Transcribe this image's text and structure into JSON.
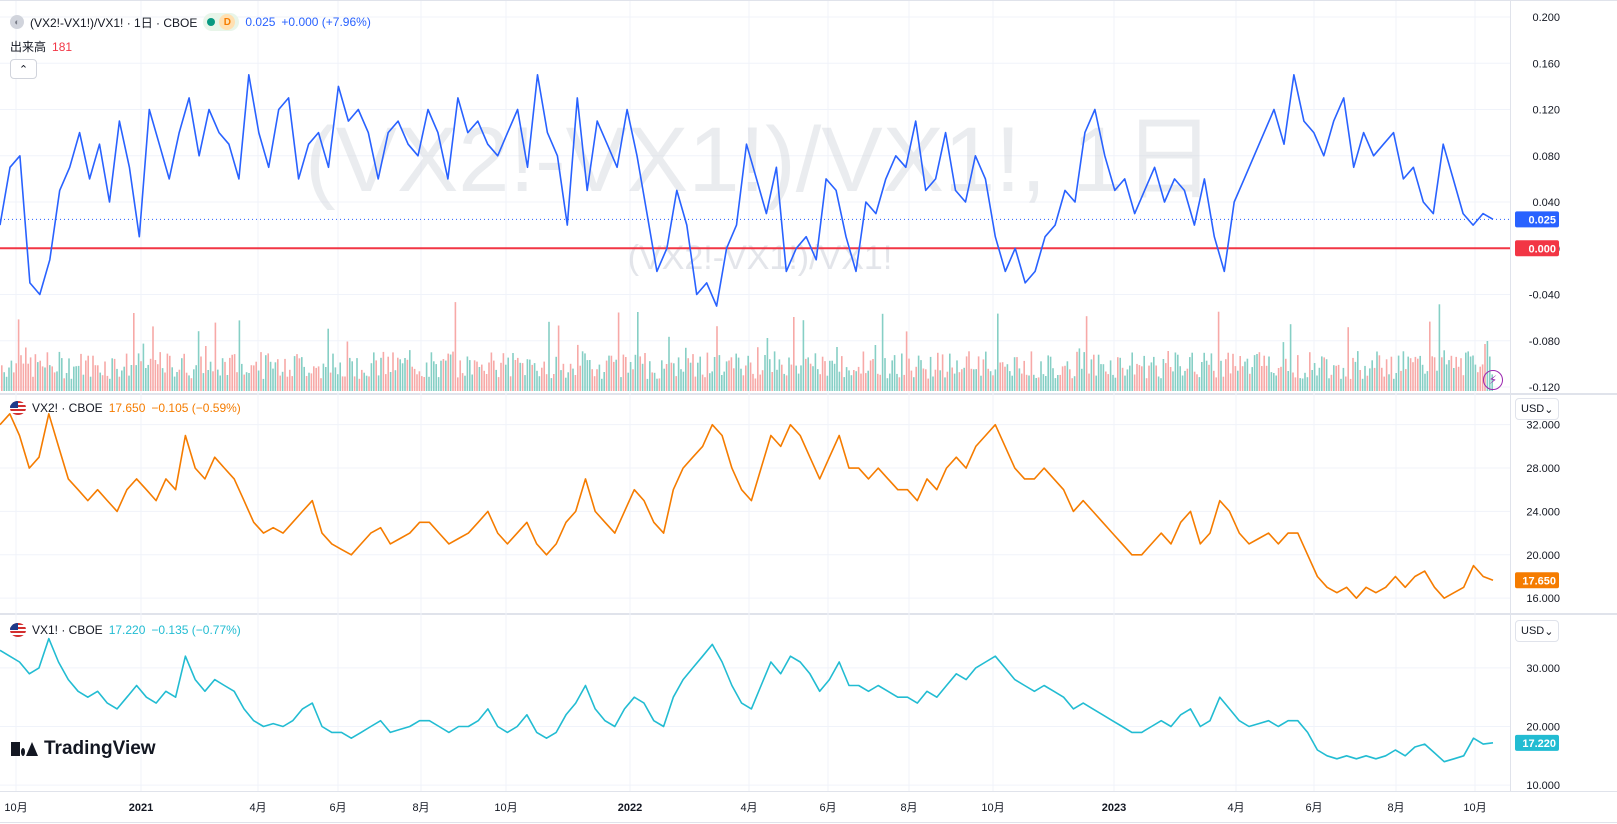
{
  "main_legend": {
    "symbol": "(VX2!-VX1!)/VX1! · 1日 · CBOE",
    "badge": "D",
    "value": "0.025",
    "change": "+0.000 (+7.96%)",
    "volume_label": "出来高",
    "volume_value": "181",
    "collapse_icon": "chevron-up-icon"
  },
  "watermark": {
    "big": "(VX2!-VX1!)/VX1!, 1日",
    "small": "(VX2!-VX1!)/VX1!"
  },
  "price_labels": {
    "spread_current": "0.025",
    "spread_zero": "0.000",
    "vx2_current": "17.650",
    "vx1_current": "17.220"
  },
  "vx2_legend": {
    "symbol": "VX2! · CBOE",
    "value": "17.650",
    "change": "−0.105 (−0.59%)",
    "currency": "USD"
  },
  "vx1_legend": {
    "symbol": "VX1! · CBOE",
    "value": "17.220",
    "change": "−0.135 (−0.77%)",
    "currency": "USD"
  },
  "branding": {
    "name": "TradingView"
  },
  "colors": {
    "spread": "#2962ff",
    "zero_line": "#f23645",
    "vx2": "#f57c00",
    "vx1": "#22bcd2",
    "vol_up": "#86cfc5",
    "vol_down": "#f7a9a7",
    "grid": "#f0f3fa",
    "axis_text": "#131722"
  },
  "chart_data": [
    {
      "type": "line",
      "title": "(VX2!-VX1!)/VX1! · 1日 · CBOE",
      "y_ticks": [
        "0.200",
        "0.160",
        "0.120",
        "0.080",
        "0.040",
        "0.000",
        "-0.040",
        "-0.080",
        "-0.120"
      ],
      "ylim": [
        -0.12,
        0.2
      ],
      "zero_line": 0.0,
      "last_value": 0.025,
      "x_ticks": [
        "10月",
        "2021",
        "4月",
        "6月",
        "8月",
        "10月",
        "2022",
        "4月",
        "6月",
        "8月",
        "10月",
        "2023",
        "4月",
        "6月",
        "8月",
        "10月"
      ],
      "series": [
        {
          "name": "(VX2!-VX1!)/VX1!",
          "keypoints": [
            0.02,
            0.07,
            0.08,
            -0.03,
            -0.04,
            -0.01,
            0.05,
            0.07,
            0.1,
            0.06,
            0.09,
            0.04,
            0.11,
            0.07,
            0.01,
            0.12,
            0.09,
            0.06,
            0.1,
            0.13,
            0.08,
            0.12,
            0.1,
            0.09,
            0.06,
            0.15,
            0.1,
            0.07,
            0.12,
            0.13,
            0.06,
            0.09,
            0.1,
            0.07,
            0.14,
            0.11,
            0.12,
            0.1,
            0.06,
            0.1,
            0.11,
            0.09,
            0.08,
            0.12,
            0.1,
            0.06,
            0.13,
            0.1,
            0.11,
            0.09,
            0.08,
            0.1,
            0.12,
            0.07,
            0.15,
            0.1,
            0.08,
            0.02,
            0.13,
            0.05,
            0.11,
            0.09,
            0.07,
            0.12,
            0.08,
            0.03,
            -0.02,
            0.0,
            0.05,
            0.02,
            -0.04,
            -0.03,
            -0.05,
            0.0,
            0.02,
            0.09,
            0.06,
            0.03,
            0.07,
            -0.02,
            0.0,
            0.01,
            -0.01,
            0.06,
            0.05,
            0.01,
            -0.02,
            0.04,
            0.03,
            0.06,
            0.08,
            0.07,
            0.11,
            0.05,
            0.06,
            0.1,
            0.05,
            0.04,
            0.08,
            0.06,
            0.01,
            -0.02,
            0.0,
            -0.03,
            -0.02,
            0.01,
            0.02,
            0.05,
            0.04,
            0.1,
            0.12,
            0.08,
            0.05,
            0.06,
            0.03,
            0.05,
            0.07,
            0.04,
            0.06,
            0.05,
            0.02,
            0.06,
            0.01,
            -0.02,
            0.04,
            0.06,
            0.08,
            0.1,
            0.12,
            0.09,
            0.15,
            0.11,
            0.1,
            0.08,
            0.11,
            0.13,
            0.07,
            0.1,
            0.08,
            0.09,
            0.1,
            0.06,
            0.07,
            0.04,
            0.03,
            0.09,
            0.06,
            0.03,
            0.02,
            0.03,
            0.025
          ]
        }
      ],
      "volume": {
        "label": "出来高",
        "last": 181
      }
    },
    {
      "type": "line",
      "title": "VX2! · CBOE",
      "y_ticks": [
        "32.000",
        "28.000",
        "24.000",
        "20.000",
        "16.000"
      ],
      "ylim": [
        15,
        34
      ],
      "last_value": 17.65,
      "series": [
        {
          "name": "VX2!",
          "keypoints": [
            32,
            33,
            31,
            28,
            29,
            33,
            30,
            27,
            26,
            25,
            26,
            25,
            24,
            26,
            27,
            26,
            25,
            27,
            26,
            31,
            28,
            27,
            29,
            28,
            27,
            25,
            23,
            22,
            22.5,
            22,
            23,
            24,
            25,
            22,
            21,
            20.5,
            20,
            21,
            22,
            22.5,
            21,
            21.5,
            22,
            23,
            23,
            22,
            21,
            21.5,
            22,
            23,
            24,
            22,
            21,
            22,
            23,
            21,
            20,
            21,
            23,
            24,
            27,
            24,
            23,
            22,
            24,
            26,
            25,
            23,
            22,
            26,
            28,
            29,
            30,
            32,
            31,
            28,
            26,
            25,
            28,
            31,
            30,
            32,
            31,
            29,
            27,
            29,
            31,
            28,
            28,
            27,
            28,
            27,
            26,
            26,
            25,
            27,
            26,
            28,
            29,
            28,
            30,
            31,
            32,
            30,
            28,
            27,
            27,
            28,
            27,
            26,
            24,
            25,
            24,
            23,
            22,
            21,
            20,
            20,
            21,
            22,
            21,
            23,
            24,
            21,
            22,
            25,
            24,
            22,
            21,
            21.5,
            22,
            21,
            22,
            22,
            20,
            18,
            17,
            16.5,
            17,
            16,
            17,
            16.5,
            17,
            18,
            17,
            18,
            18.5,
            17,
            16,
            16.5,
            17,
            19,
            18,
            17.65
          ]
        }
      ]
    },
    {
      "type": "line",
      "title": "VX1! · CBOE",
      "y_ticks": [
        "30.000",
        "20.000",
        "10.000"
      ],
      "ylim": [
        9,
        38
      ],
      "last_value": 17.22,
      "series": [
        {
          "name": "VX1!",
          "keypoints": [
            33,
            32,
            31,
            29,
            30,
            35,
            31,
            28,
            26,
            25,
            26,
            24,
            23,
            25,
            27,
            25,
            24,
            26,
            25,
            32,
            28,
            26,
            28,
            27,
            26,
            23,
            21,
            20,
            20.5,
            20,
            21,
            23,
            24,
            20,
            19,
            19,
            18,
            19,
            20,
            21,
            19,
            19.5,
            20,
            21,
            21,
            20,
            19,
            20,
            20,
            21,
            23,
            20,
            19,
            20,
            22,
            19,
            18,
            19,
            22,
            24,
            27,
            23,
            21,
            20,
            23,
            25,
            24,
            21,
            20,
            25,
            28,
            30,
            32,
            34,
            31,
            27,
            24,
            23,
            27,
            31,
            29,
            32,
            31,
            29,
            26,
            28,
            31,
            27,
            27,
            26,
            27,
            26,
            25,
            25,
            24,
            26,
            25,
            27,
            29,
            28,
            30,
            31,
            32,
            30,
            28,
            27,
            26,
            27,
            26,
            25,
            23,
            24,
            23,
            22,
            21,
            20,
            19,
            19,
            20,
            21,
            20,
            22,
            23,
            20,
            21,
            25,
            23,
            21,
            20,
            20.5,
            21,
            20,
            21,
            21,
            19,
            16,
            15,
            14.5,
            15,
            14.5,
            15,
            14.5,
            15,
            16,
            15,
            16.5,
            17,
            15.5,
            14,
            14.5,
            15,
            18,
            17,
            17.22
          ]
        }
      ]
    }
  ]
}
